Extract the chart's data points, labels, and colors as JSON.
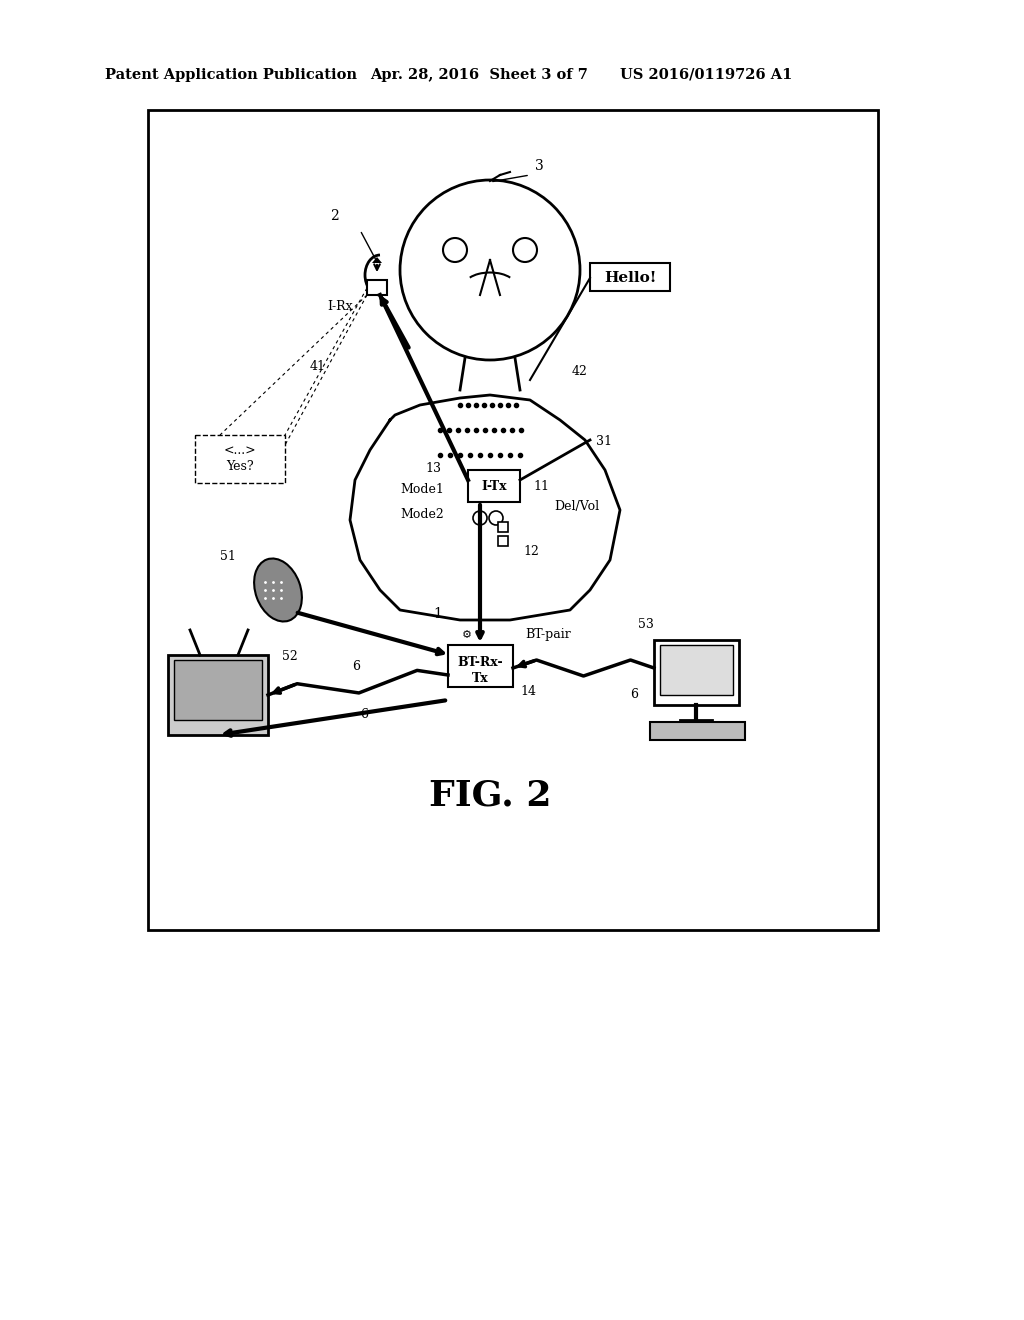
{
  "bg_color": "#ffffff",
  "border_color": "#000000",
  "header_text1": "Patent Application Publication",
  "header_text2": "Apr. 28, 2016  Sheet 3 of 7",
  "header_text3": "US 2016/0119726 A1",
  "fig_label": "FIG. 2",
  "title_fontsize": 11,
  "header_fontsize": 10.5
}
